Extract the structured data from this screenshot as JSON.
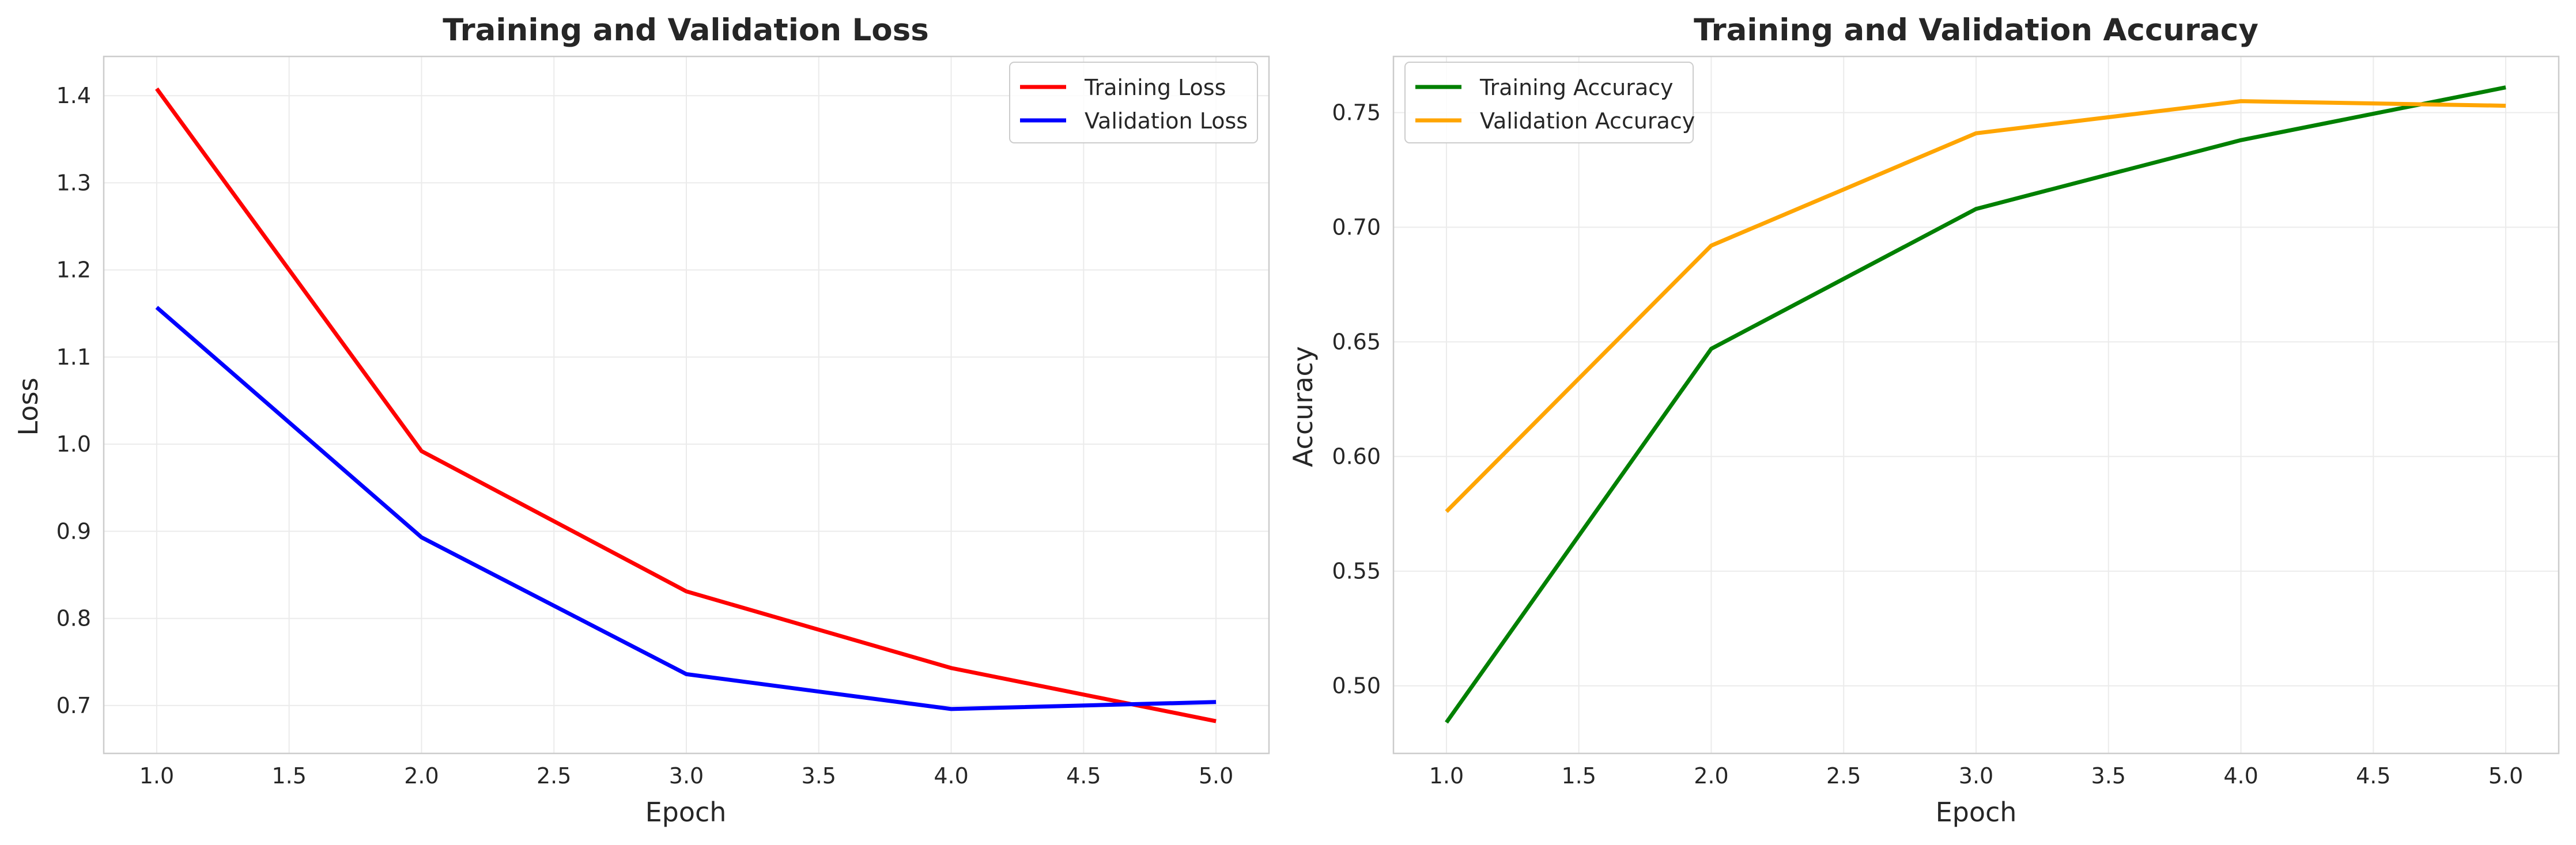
{
  "chart_data": [
    {
      "type": "line",
      "title": "Training and Validation Loss",
      "xlabel": "Epoch",
      "ylabel": "Loss",
      "xlim": [
        0.8,
        5.2
      ],
      "ylim": [
        0.645,
        1.445
      ],
      "x_ticks": [
        1.0,
        1.5,
        2.0,
        2.5,
        3.0,
        3.5,
        4.0,
        4.5,
        5.0
      ],
      "x_tick_labels": [
        "1.0",
        "1.5",
        "2.0",
        "2.5",
        "3.0",
        "3.5",
        "4.0",
        "4.5",
        "5.0"
      ],
      "y_ticks": [
        0.7,
        0.8,
        0.9,
        1.0,
        1.1,
        1.2,
        1.3,
        1.4
      ],
      "y_tick_labels": [
        "0.7",
        "0.8",
        "0.9",
        "1.0",
        "1.1",
        "1.2",
        "1.3",
        "1.4"
      ],
      "grid": true,
      "legend_position": "top-right",
      "x": [
        1,
        2,
        3,
        4,
        5
      ],
      "series": [
        {
          "name": "Training Loss",
          "color": "#ff0000",
          "values": [
            1.408,
            0.992,
            0.831,
            0.743,
            0.682
          ]
        },
        {
          "name": "Validation Loss",
          "color": "#0000ff",
          "values": [
            1.157,
            0.893,
            0.736,
            0.696,
            0.704
          ]
        }
      ]
    },
    {
      "type": "line",
      "title": "Training and Validation Accuracy",
      "xlabel": "Epoch",
      "ylabel": "Accuracy",
      "xlim": [
        0.8,
        5.2
      ],
      "ylim": [
        0.4705,
        0.7745
      ],
      "x_ticks": [
        1.0,
        1.5,
        2.0,
        2.5,
        3.0,
        3.5,
        4.0,
        4.5,
        5.0
      ],
      "x_tick_labels": [
        "1.0",
        "1.5",
        "2.0",
        "2.5",
        "3.0",
        "3.5",
        "4.0",
        "4.5",
        "5.0"
      ],
      "y_ticks": [
        0.5,
        0.55,
        0.6,
        0.65,
        0.7,
        0.75
      ],
      "y_tick_labels": [
        "0.50",
        "0.55",
        "0.60",
        "0.65",
        "0.70",
        "0.75"
      ],
      "grid": true,
      "legend_position": "top-left",
      "x": [
        1,
        2,
        3,
        4,
        5
      ],
      "series": [
        {
          "name": "Training Accuracy",
          "color": "#008000",
          "values": [
            0.484,
            0.647,
            0.708,
            0.738,
            0.761
          ]
        },
        {
          "name": "Validation Accuracy",
          "color": "#ffa500",
          "values": [
            0.576,
            0.692,
            0.741,
            0.755,
            0.753
          ]
        }
      ]
    }
  ]
}
